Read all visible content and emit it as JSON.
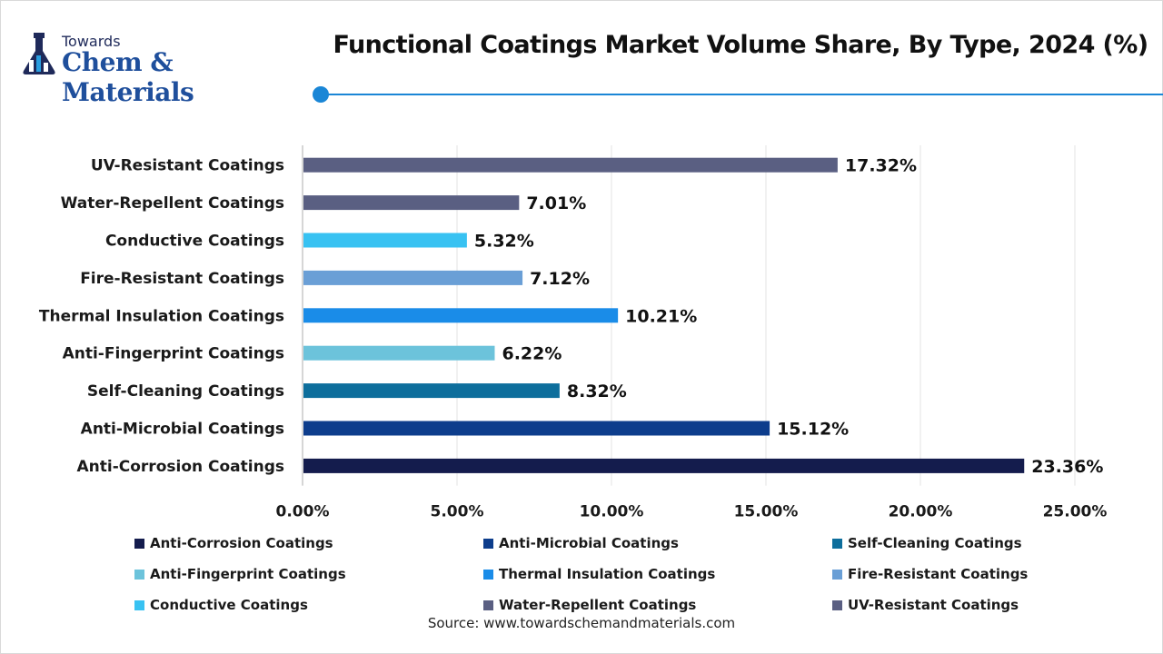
{
  "brand": {
    "top": "Towards",
    "main": "Chem & Materials"
  },
  "source": "Source: www.towardschemandmaterials.com",
  "chart_data": {
    "type": "bar",
    "orientation": "horizontal",
    "title": "Functional Coatings Market Volume Share, By Type, 2024 (%)",
    "categories": [
      "UV-Resistant Coatings",
      "Water-Repellent Coatings",
      "Conductive Coatings",
      "Fire-Resistant Coatings",
      "Thermal Insulation Coatings",
      "Anti-Fingerprint Coatings",
      "Self-Cleaning Coatings",
      "Anti-Microbial Coatings",
      "Anti-Corrosion Coatings"
    ],
    "values": [
      17.32,
      7.01,
      5.32,
      7.12,
      10.21,
      6.22,
      8.32,
      15.12,
      23.36
    ],
    "value_labels": [
      "17.32%",
      "7.01%",
      "5.32%",
      "7.12%",
      "10.21%",
      "6.22%",
      "8.32%",
      "15.12%",
      "23.36%"
    ],
    "colors": [
      "#5a5f82",
      "#5a5f82",
      "#38c2f2",
      "#6a9fd6",
      "#1a8ce8",
      "#6cc3db",
      "#0d6e9c",
      "#0d3d8c",
      "#141c4d"
    ],
    "xlim": [
      0,
      25
    ],
    "xticks": [
      "0.00%",
      "5.00%",
      "10.00%",
      "15.00%",
      "20.00%",
      "25.00%"
    ],
    "grid": true,
    "legend_position": "bottom",
    "legend": [
      {
        "name": "Anti-Corrosion Coatings",
        "color": "#141c4d"
      },
      {
        "name": "Anti-Microbial Coatings",
        "color": "#0d3d8c"
      },
      {
        "name": "Self-Cleaning Coatings",
        "color": "#0d6e9c"
      },
      {
        "name": "Anti-Fingerprint Coatings",
        "color": "#6cc3db"
      },
      {
        "name": "Thermal Insulation Coatings",
        "color": "#1a8ce8"
      },
      {
        "name": "Fire-Resistant Coatings",
        "color": "#6a9fd6"
      },
      {
        "name": "Conductive Coatings",
        "color": "#38c2f2"
      },
      {
        "name": "Water-Repellent Coatings",
        "color": "#5a5f82"
      },
      {
        "name": "UV-Resistant Coatings",
        "color": "#5a5f82"
      }
    ]
  }
}
